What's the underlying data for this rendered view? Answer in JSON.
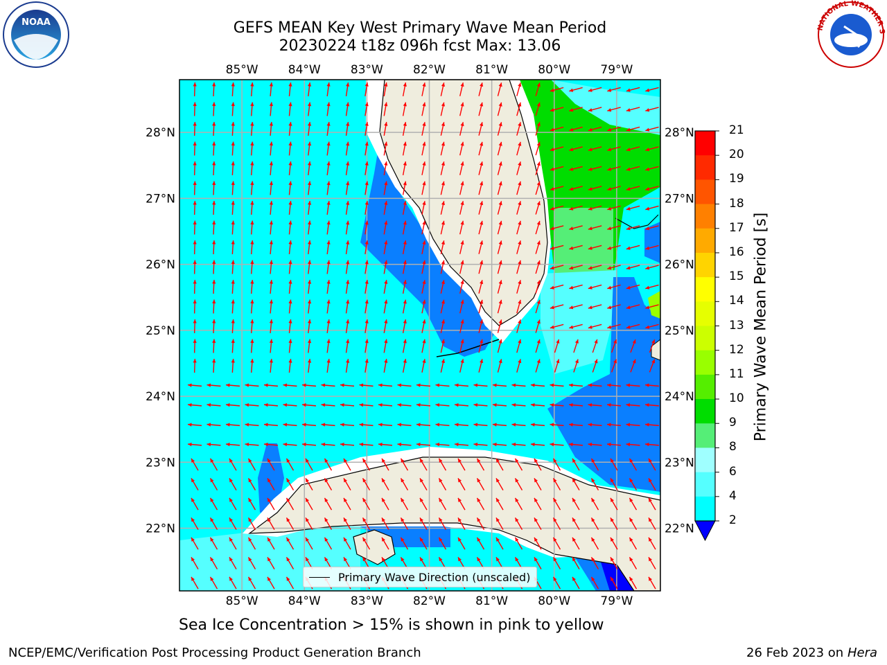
{
  "title": {
    "line1": "GEFS MEAN Key West Primary Wave Mean Period",
    "line2": "20230224 t18z 096h fcst   Max: 13.06"
  },
  "axes": {
    "longitude_labels": [
      "85°W",
      "84°W",
      "83°W",
      "82°W",
      "81°W",
      "80°W",
      "79°W"
    ],
    "longitude_values": [
      -85,
      -84,
      -83,
      -82,
      -81,
      -80,
      -79
    ],
    "latitude_labels": [
      "28°N",
      "27°N",
      "26°N",
      "25°N",
      "24°N",
      "23°N",
      "22°N"
    ],
    "latitude_values": [
      28,
      27,
      26,
      25,
      24,
      23,
      22
    ],
    "lon_range": [
      -86.0,
      -78.3
    ],
    "lat_range": [
      21.05,
      28.8
    ]
  },
  "colorbar": {
    "label": "Primary Wave Mean Period [s]",
    "tick_labels": [
      "21",
      "20",
      "19",
      "18",
      "17",
      "16",
      "15",
      "14",
      "13",
      "12",
      "11",
      "10",
      "9",
      "8",
      "6",
      "4",
      "2"
    ],
    "colors": [
      "#ff0000",
      "#ff2a00",
      "#ff5500",
      "#ff8000",
      "#ffaa00",
      "#ffd400",
      "#ffff00",
      "#e6ff00",
      "#ccff00",
      "#99ff00",
      "#55ee00",
      "#00dd00",
      "#55ee77",
      "#9fffff",
      "#55ffff",
      "#00ffff",
      "#0a7fff"
    ],
    "extend_color": "#0000ff"
  },
  "legend": {
    "label": "Primary Wave Direction (unscaled)"
  },
  "bottom_note": "Sea Ice Concentration > 15% is shown in pink to yellow",
  "footer": {
    "left": "NCEP/EMC/Verification Post Processing Product Generation Branch",
    "right_date": "26 Feb 2023 on",
    "right_host": "Hera"
  },
  "logos": {
    "left": "NOAA",
    "right_name": "NATIONAL WEATHER SERVICE"
  },
  "palette": {
    "land": "#efedde",
    "sea_4_6": "#00ffff",
    "sea_2_4": "#0a7fff",
    "sea_6_8": "#55ffff",
    "sea_8_9": "#9fffff",
    "sea_9_10": "#55ee77",
    "sea_10_11": "#00dd00",
    "grid": "#b0b0b0",
    "arrow": "#ff0000"
  }
}
